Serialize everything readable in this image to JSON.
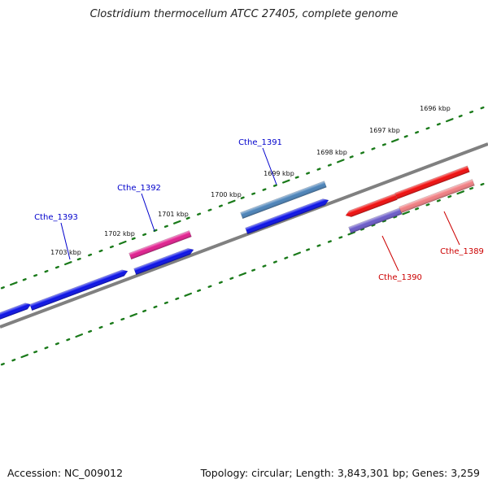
{
  "title": "Clostridium thermocellum ATCC 27405, complete genome",
  "footer": {
    "accession": "Accession: NC_009012",
    "summary": "Topology: circular; Length: 3,843,301 bp; Genes: 3,259"
  },
  "colors": {
    "backbone": "#808080",
    "tick": "#1a7a1a",
    "forward_label": "#0000cc",
    "reverse_label": "#cc0000"
  },
  "axis": {
    "unit": "kbp",
    "ticks": [
      {
        "label": "1696 kbp"
      },
      {
        "label": "1697 kbp"
      },
      {
        "label": "1698 kbp"
      },
      {
        "label": "1699 kbp"
      },
      {
        "label": "1700 kbp"
      },
      {
        "label": "1701 kbp"
      },
      {
        "label": "1702 kbp"
      },
      {
        "label": "1703 kbp"
      }
    ]
  },
  "labeled_features": [
    {
      "name": "Cthe_1393",
      "strand": "forward",
      "color": "#0000cc"
    },
    {
      "name": "Cthe_1392",
      "strand": "forward",
      "color": "#0000cc"
    },
    {
      "name": "Cthe_1391",
      "strand": "forward",
      "color": "#0000cc"
    },
    {
      "name": "Cthe_1390",
      "strand": "reverse",
      "color": "#cc0000"
    },
    {
      "name": "Cthe_1389",
      "strand": "reverse",
      "color": "#cc0000"
    }
  ],
  "feature_colors": {
    "cds_blue": "#0a10e6",
    "gene_1392": "#e01e8e",
    "gene_1391": "#4a82b8",
    "cds_red": "#f00c0c",
    "gene_1389": "#f07e82",
    "gene_1390": "#6a5ac8"
  }
}
